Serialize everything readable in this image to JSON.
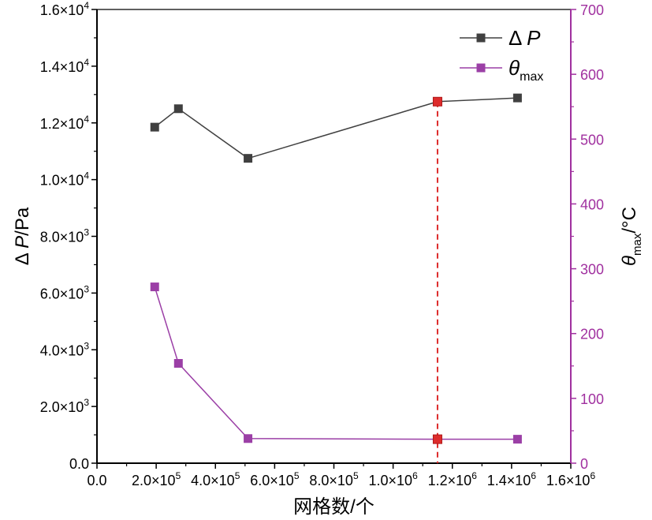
{
  "chart_data": {
    "type": "line",
    "title": "",
    "xlabel": "网格数/个",
    "ylabel_left": "ΔP/Pa",
    "ylabel_right": "θmax/°C",
    "xlim": [
      0,
      1600000
    ],
    "ylim_left": [
      0,
      16000
    ],
    "ylim_right": [
      0,
      700
    ],
    "x_ticks": [
      0,
      200000,
      400000,
      600000,
      800000,
      1000000,
      1200000,
      1400000,
      1600000
    ],
    "x_tick_labels": [
      {
        "mant": "0.0",
        "exp": ""
      },
      {
        "mant": "2.0×10",
        "exp": "5"
      },
      {
        "mant": "4.0×10",
        "exp": "5"
      },
      {
        "mant": "6.0×10",
        "exp": "5"
      },
      {
        "mant": "8.0×10",
        "exp": "5"
      },
      {
        "mant": "1.0×10",
        "exp": "6"
      },
      {
        "mant": "1.2×10",
        "exp": "6"
      },
      {
        "mant": "1.4×10",
        "exp": "6"
      },
      {
        "mant": "1.6×10",
        "exp": "6"
      }
    ],
    "y_left_ticks": [
      0,
      2000,
      4000,
      6000,
      8000,
      10000,
      12000,
      14000,
      16000
    ],
    "y_left_tick_labels": [
      {
        "mant": "0.0",
        "exp": ""
      },
      {
        "mant": "2.0×10",
        "exp": "3"
      },
      {
        "mant": "4.0×10",
        "exp": "3"
      },
      {
        "mant": "6.0×10",
        "exp": "3"
      },
      {
        "mant": "8.0×10",
        "exp": "3"
      },
      {
        "mant": "1.0×10",
        "exp": "4"
      },
      {
        "mant": "1.2×10",
        "exp": "4"
      },
      {
        "mant": "1.4×10",
        "exp": "4"
      },
      {
        "mant": "1.6×10",
        "exp": "4"
      }
    ],
    "y_right_ticks": [
      0,
      100,
      200,
      300,
      400,
      500,
      600,
      700
    ],
    "y_right_tick_labels": [
      "0",
      "100",
      "200",
      "300",
      "400",
      "500",
      "600",
      "700"
    ],
    "series": [
      {
        "name": "ΔP",
        "legend_label": "Δ P",
        "axis": "left",
        "color": "#404040",
        "x": [
          195000,
          275000,
          510000,
          1150000,
          1420000
        ],
        "values": [
          11850,
          12500,
          10750,
          12750,
          12880
        ]
      },
      {
        "name": "θmax",
        "legend_label": "θ",
        "legend_sub": "max",
        "axis": "right",
        "color": "#9b3fa6",
        "x": [
          195000,
          275000,
          510000,
          1150000,
          1420000
        ],
        "values": [
          272,
          154,
          38,
          37,
          37
        ]
      }
    ],
    "highlight": {
      "x": 1150000,
      "color": "#dd2c2c",
      "style": "dashed"
    },
    "colors": {
      "left_axis": "#000000",
      "right_axis": "#a0309f"
    },
    "legend_position": "top-right"
  }
}
